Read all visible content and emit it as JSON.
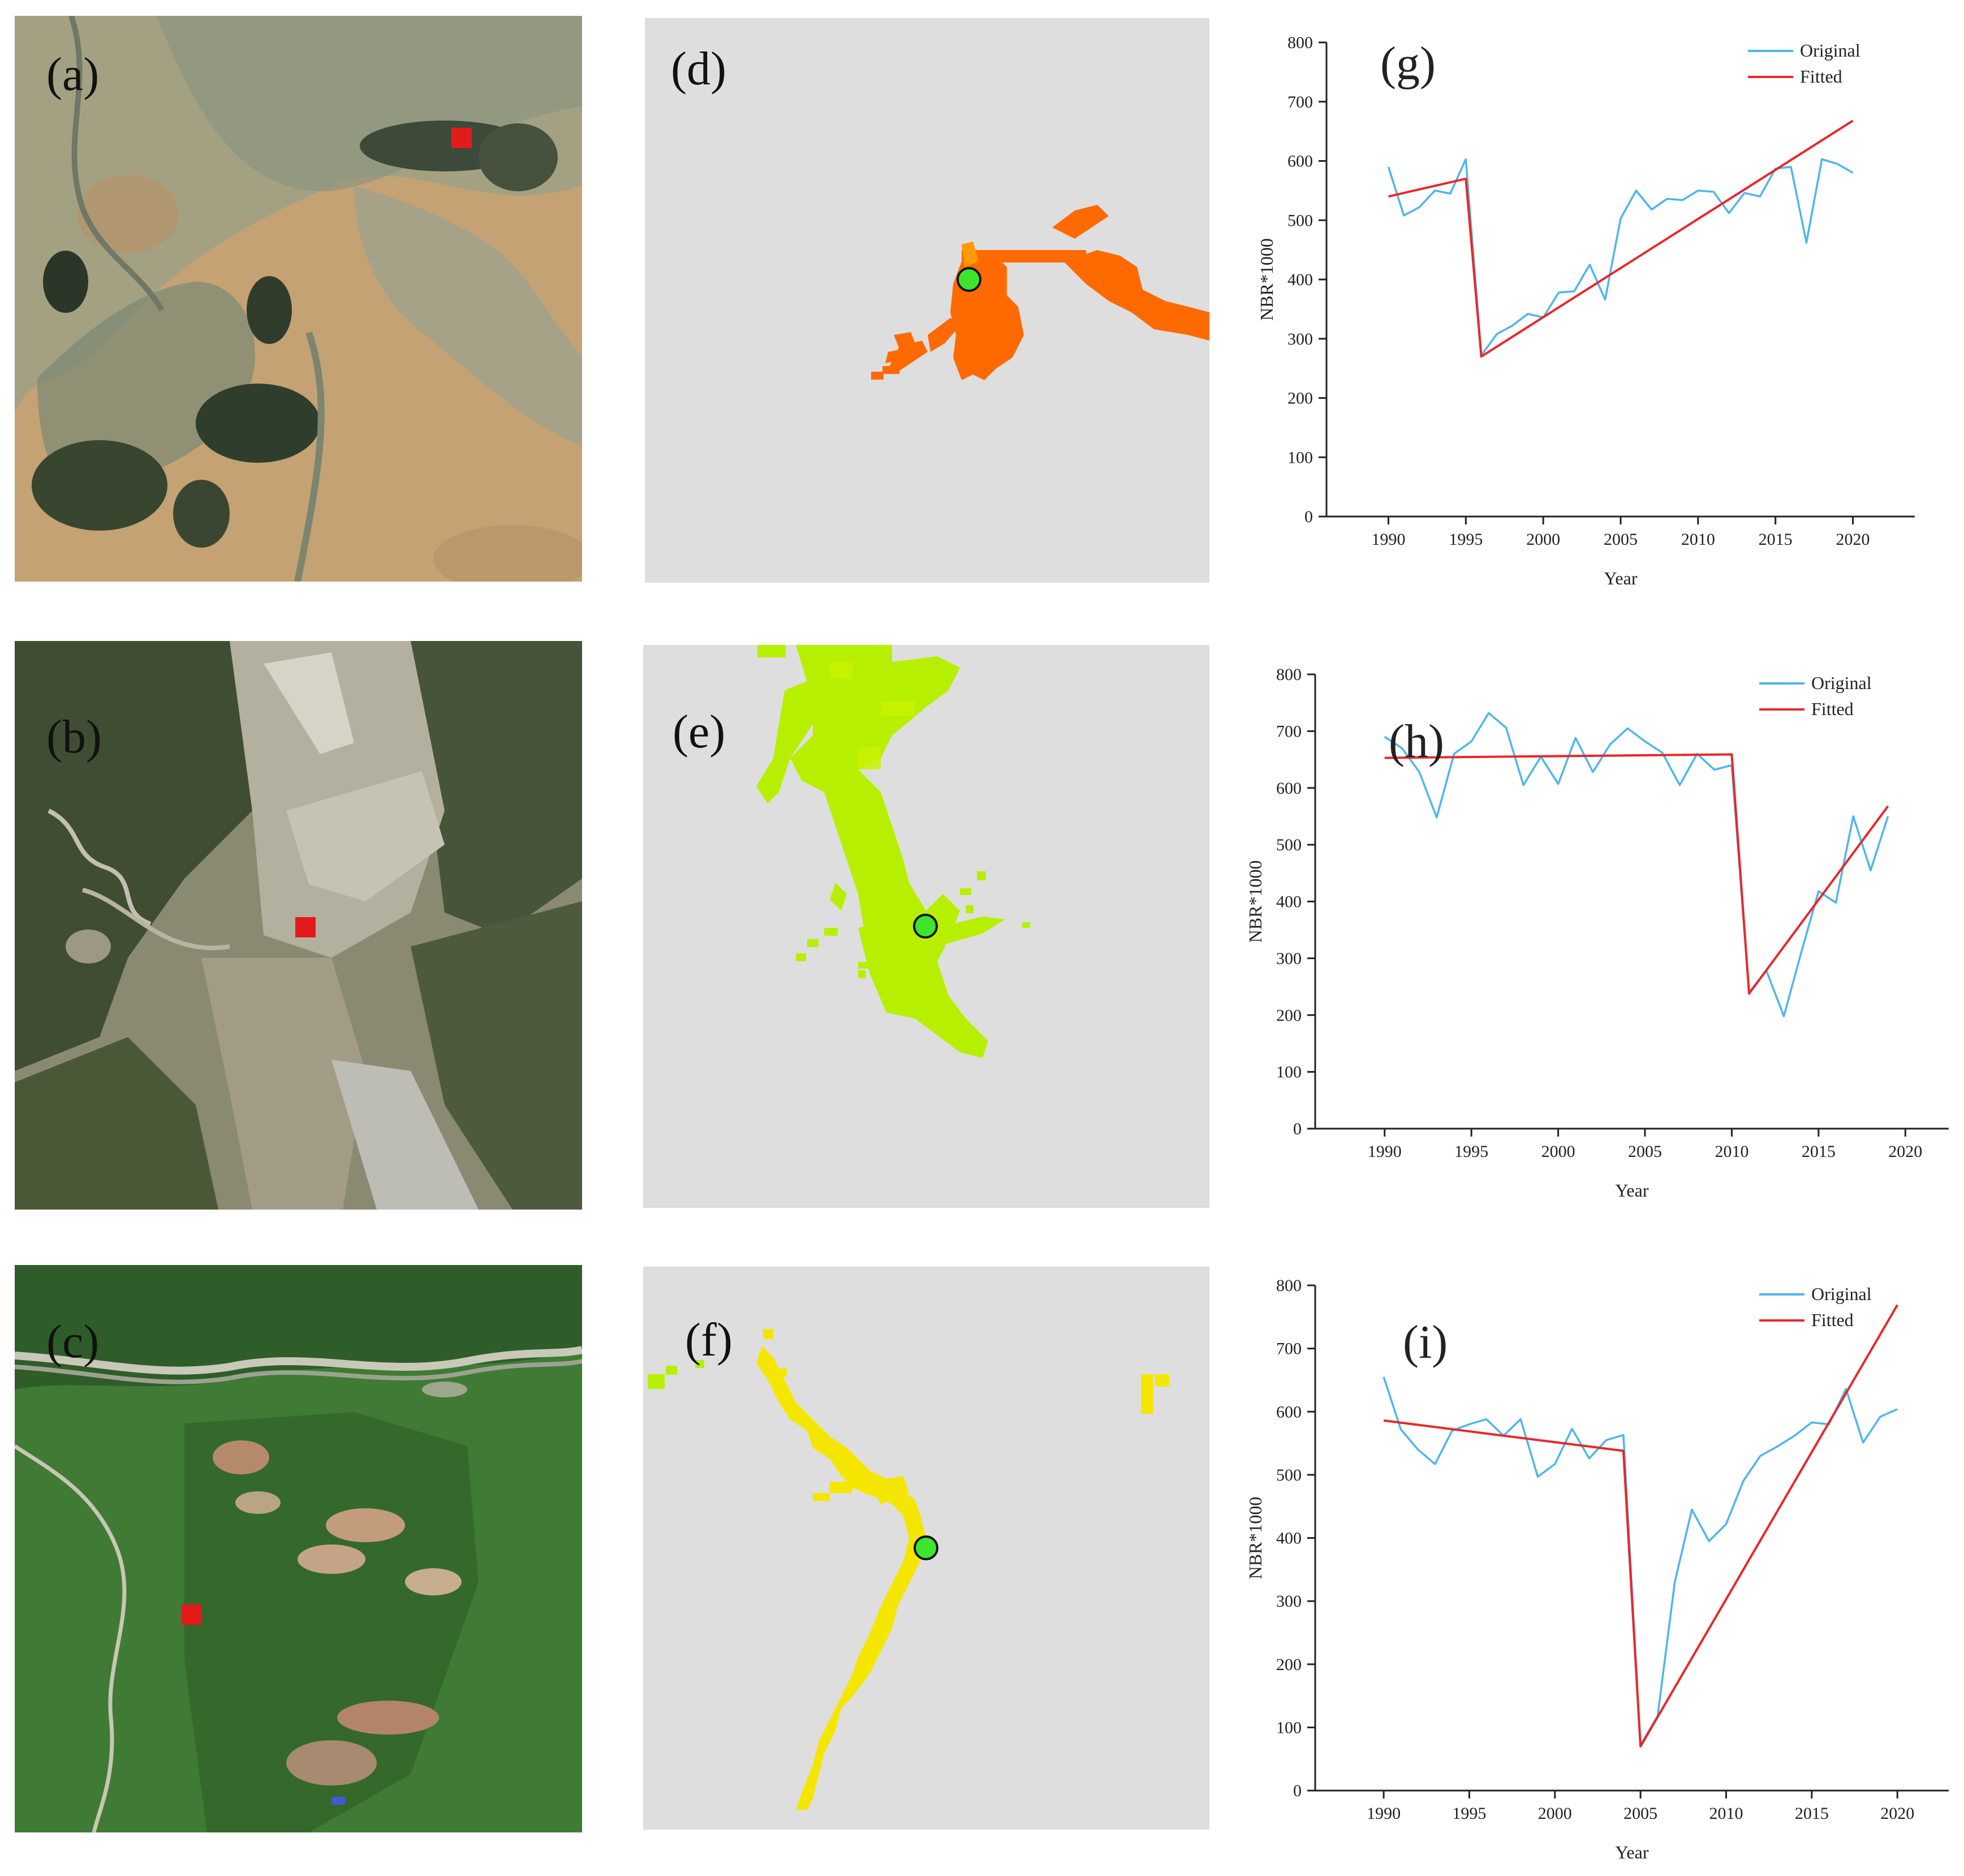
{
  "panel_labels": {
    "a": "(a)",
    "b": "(b)",
    "c": "(c)",
    "d": "(d)",
    "e": "(e)",
    "f": "(f)",
    "g": "(g)",
    "h": "(h)",
    "i": "(i)"
  },
  "colors": {
    "original": "#4db6ec",
    "fitted": "#e8272b",
    "marker_red": "#e31b1b",
    "point_green": "#3ee52c",
    "disturbance_d": "#ff6a00",
    "disturbance_e": "#b6f000",
    "disturbance_f": "#f5e600",
    "map_background": "#dedede"
  },
  "chart_data": [
    {
      "type": "line",
      "panel": "(g)",
      "xlabel": "Year",
      "ylabel": "NBR*1000",
      "xlim": [
        1986,
        2024
      ],
      "ylim": [
        0,
        800
      ],
      "xticks": [
        1990,
        1995,
        2000,
        2005,
        2010,
        2015,
        2020
      ],
      "yticks": [
        0,
        100,
        200,
        300,
        400,
        500,
        600,
        700,
        800
      ],
      "legend": {
        "position": "top-right",
        "entries": [
          "Original",
          "Fitted"
        ]
      },
      "series": [
        {
          "name": "Original",
          "x": [
            1990,
            1991,
            1992,
            1993,
            1994,
            1995,
            1996,
            1997,
            1998,
            1999,
            2000,
            2001,
            2002,
            2003,
            2004,
            2005,
            2006,
            2007,
            2008,
            2009,
            2010,
            2011,
            2012,
            2013,
            2014,
            2015,
            2016,
            2017,
            2018,
            2019,
            2020
          ],
          "y": [
            590,
            508,
            522,
            550,
            545,
            603,
            272,
            308,
            322,
            342,
            336,
            378,
            380,
            425,
            366,
            503,
            550,
            518,
            536,
            534,
            550,
            548,
            512,
            546,
            540,
            587,
            590,
            462,
            603,
            595,
            580
          ]
        },
        {
          "name": "Fitted",
          "x": [
            1990,
            1995,
            1996,
            2020
          ],
          "y": [
            540,
            570,
            270,
            668
          ]
        }
      ]
    },
    {
      "type": "line",
      "panel": "(h)",
      "xlabel": "Year",
      "ylabel": "NBR*1000",
      "xlim": [
        1986,
        2022.5
      ],
      "ylim": [
        0,
        800
      ],
      "xticks": [
        1990,
        1995,
        2000,
        2005,
        2010,
        2015,
        2020
      ],
      "yticks": [
        0,
        100,
        200,
        300,
        400,
        500,
        600,
        700,
        800
      ],
      "legend": {
        "position": "top-right",
        "entries": [
          "Original",
          "Fitted"
        ]
      },
      "series": [
        {
          "name": "Original",
          "x": [
            1990,
            1991,
            1992,
            1993,
            1994,
            1995,
            1996,
            1997,
            1998,
            1999,
            2000,
            2001,
            2002,
            2003,
            2004,
            2005,
            2006,
            2007,
            2008,
            2009,
            2010,
            2011,
            2012,
            2013,
            2014,
            2015,
            2016,
            2017,
            2018,
            2019
          ],
          "y": [
            690,
            670,
            628,
            548,
            660,
            682,
            732,
            706,
            605,
            655,
            607,
            688,
            628,
            677,
            705,
            682,
            662,
            605,
            660,
            632,
            640,
            240,
            278,
            198,
            310,
            418,
            398,
            550,
            455,
            550
          ]
        },
        {
          "name": "Fitted",
          "x": [
            1990,
            2010,
            2011,
            2019
          ],
          "y": [
            653,
            659,
            238,
            568
          ]
        }
      ]
    },
    {
      "type": "line",
      "panel": "(i)",
      "xlabel": "Year",
      "ylabel": "NBR*1000",
      "xlim": [
        1986,
        2023
      ],
      "ylim": [
        0,
        800
      ],
      "xticks": [
        1990,
        1995,
        2000,
        2005,
        2010,
        2015,
        2020
      ],
      "yticks": [
        0,
        100,
        200,
        300,
        400,
        500,
        600,
        700,
        800
      ],
      "legend": {
        "position": "top-right",
        "entries": [
          "Original",
          "Fitted"
        ]
      },
      "series": [
        {
          "name": "Original",
          "x": [
            1990,
            1991,
            1992,
            1993,
            1994,
            1995,
            1996,
            1997,
            1998,
            1999,
            2000,
            2001,
            2002,
            2003,
            2004,
            2005,
            2006,
            2007,
            2008,
            2009,
            2010,
            2011,
            2012,
            2013,
            2014,
            2015,
            2016,
            2017,
            2018,
            2019,
            2020
          ],
          "y": [
            655,
            572,
            540,
            517,
            570,
            580,
            588,
            562,
            588,
            497,
            517,
            573,
            526,
            555,
            563,
            72,
            118,
            330,
            445,
            395,
            422,
            490,
            530,
            545,
            562,
            583,
            580,
            636,
            551,
            592,
            604
          ]
        },
        {
          "name": "Fitted",
          "x": [
            1990,
            2004,
            2005,
            2020
          ],
          "y": [
            586,
            538,
            70,
            769
          ]
        }
      ]
    }
  ]
}
